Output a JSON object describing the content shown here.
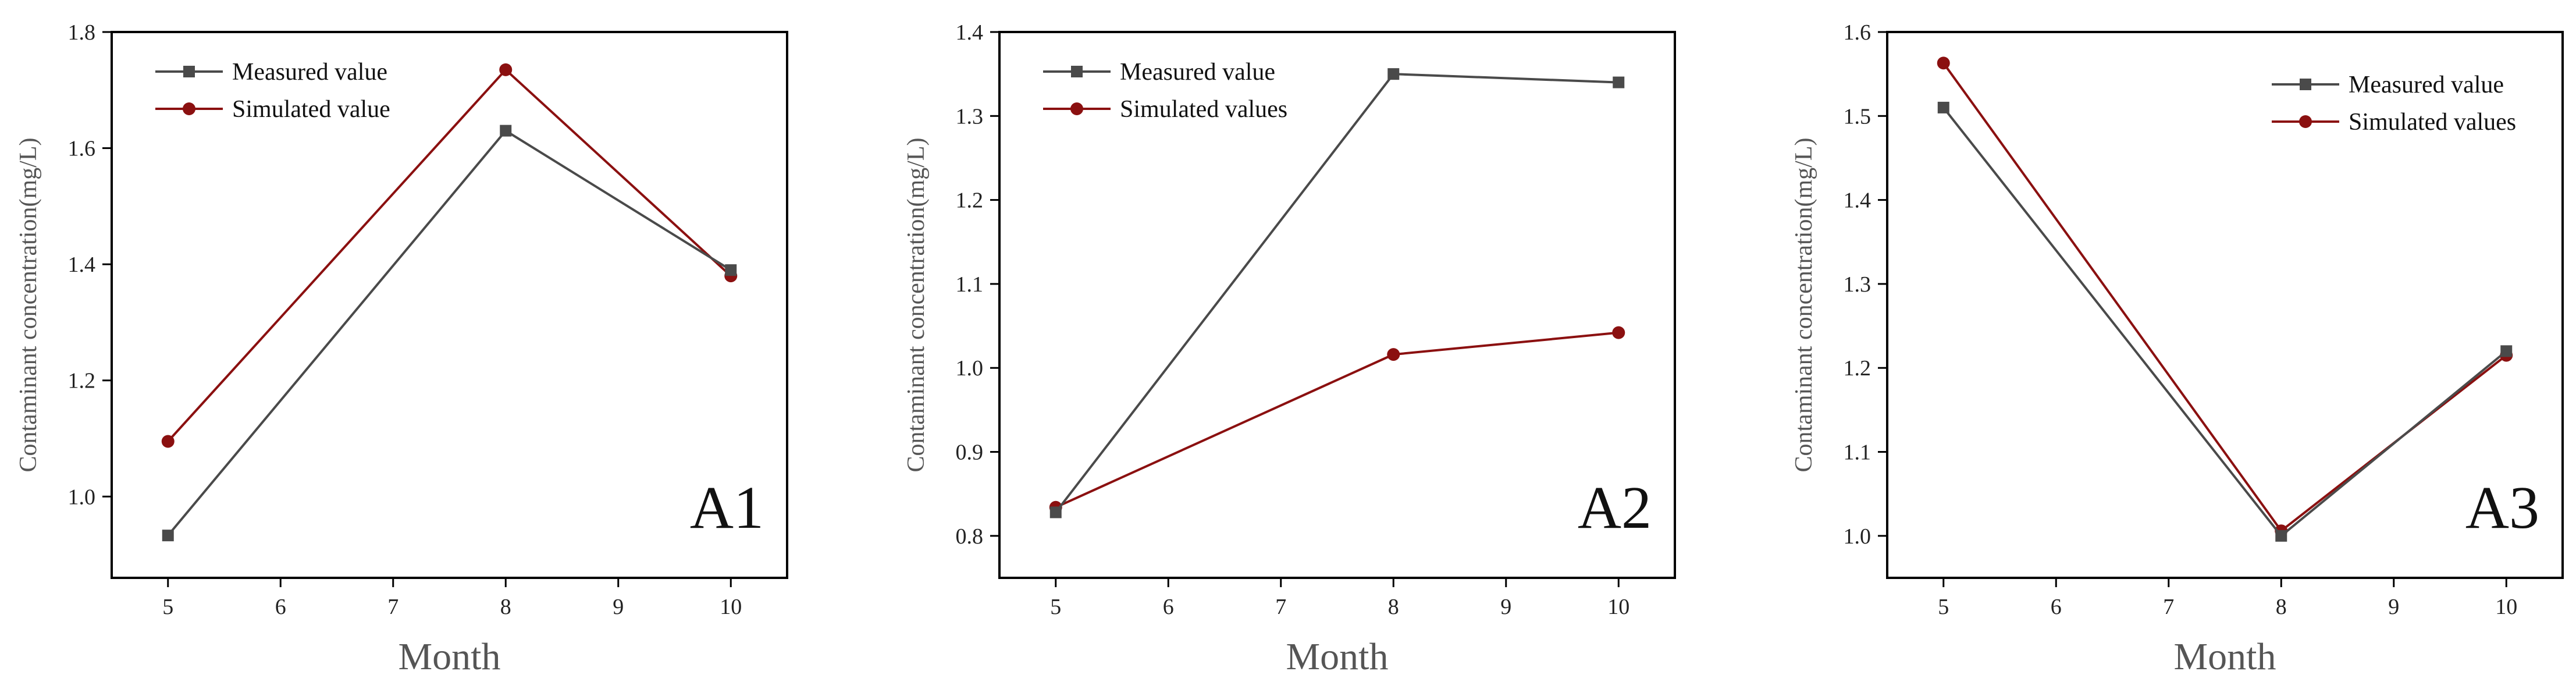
{
  "colors": {
    "measured": "#4a4a4a",
    "simulated": "#8b1010",
    "axis": "#000000"
  },
  "chart_data": [
    {
      "type": "line",
      "panel_label": "A1",
      "xlabel": "Month",
      "ylabel": "Contaminant concentration(mg/L)",
      "xlim": [
        4.5,
        10.5
      ],
      "ylim": [
        0.86,
        1.8
      ],
      "xticks": [
        5,
        6,
        7,
        8,
        9,
        10
      ],
      "yticks": [
        1.0,
        1.2,
        1.4,
        1.6,
        1.8
      ],
      "yticks_labels": [
        "1.0",
        "1.2",
        "1.4",
        "1.6",
        "1.8"
      ],
      "legend_position": "top-left",
      "series": [
        {
          "name": "Measured value",
          "marker": "square",
          "x": [
            5,
            8,
            10
          ],
          "values": [
            0.933,
            1.63,
            1.39
          ]
        },
        {
          "name": "Simulated value",
          "marker": "circle",
          "x": [
            5,
            8,
            10
          ],
          "values": [
            1.095,
            1.735,
            1.38
          ]
        }
      ]
    },
    {
      "type": "line",
      "panel_label": "A2",
      "xlabel": "Month",
      "ylabel": "Contaminant concentration(mg/L)",
      "xlim": [
        4.5,
        10.5
      ],
      "ylim": [
        0.75,
        1.4
      ],
      "xticks": [
        5,
        6,
        7,
        8,
        9,
        10
      ],
      "yticks": [
        0.8,
        0.9,
        1.0,
        1.1,
        1.2,
        1.3,
        1.4
      ],
      "yticks_labels": [
        "0.8",
        "0.9",
        "1.0",
        "1.1",
        "1.2",
        "1.3",
        "1.4"
      ],
      "legend_position": "top-left",
      "series": [
        {
          "name": "Measured value",
          "marker": "square",
          "x": [
            5,
            8,
            10
          ],
          "values": [
            0.828,
            1.35,
            1.34
          ]
        },
        {
          "name": "Simulated values",
          "marker": "circle",
          "x": [
            5,
            8,
            10
          ],
          "values": [
            0.834,
            1.016,
            1.042
          ]
        }
      ]
    },
    {
      "type": "line",
      "panel_label": "A3",
      "xlabel": "Month",
      "ylabel": "Contaminant concentration(mg/L)",
      "xlim": [
        4.5,
        10.5
      ],
      "ylim": [
        0.95,
        1.6
      ],
      "xticks": [
        5,
        6,
        7,
        8,
        9,
        10
      ],
      "yticks": [
        1.0,
        1.1,
        1.2,
        1.3,
        1.4,
        1.5,
        1.6
      ],
      "yticks_labels": [
        "1.0",
        "1.1",
        "1.2",
        "1.3",
        "1.4",
        "1.5",
        "1.6"
      ],
      "legend_position": "top-right",
      "series": [
        {
          "name": "Measured value",
          "marker": "square",
          "x": [
            5,
            8,
            10
          ],
          "values": [
            1.51,
            1.0,
            1.22
          ]
        },
        {
          "name": "Simulated values",
          "marker": "circle",
          "x": [
            5,
            8,
            10
          ],
          "values": [
            1.563,
            1.006,
            1.215
          ]
        }
      ]
    }
  ]
}
